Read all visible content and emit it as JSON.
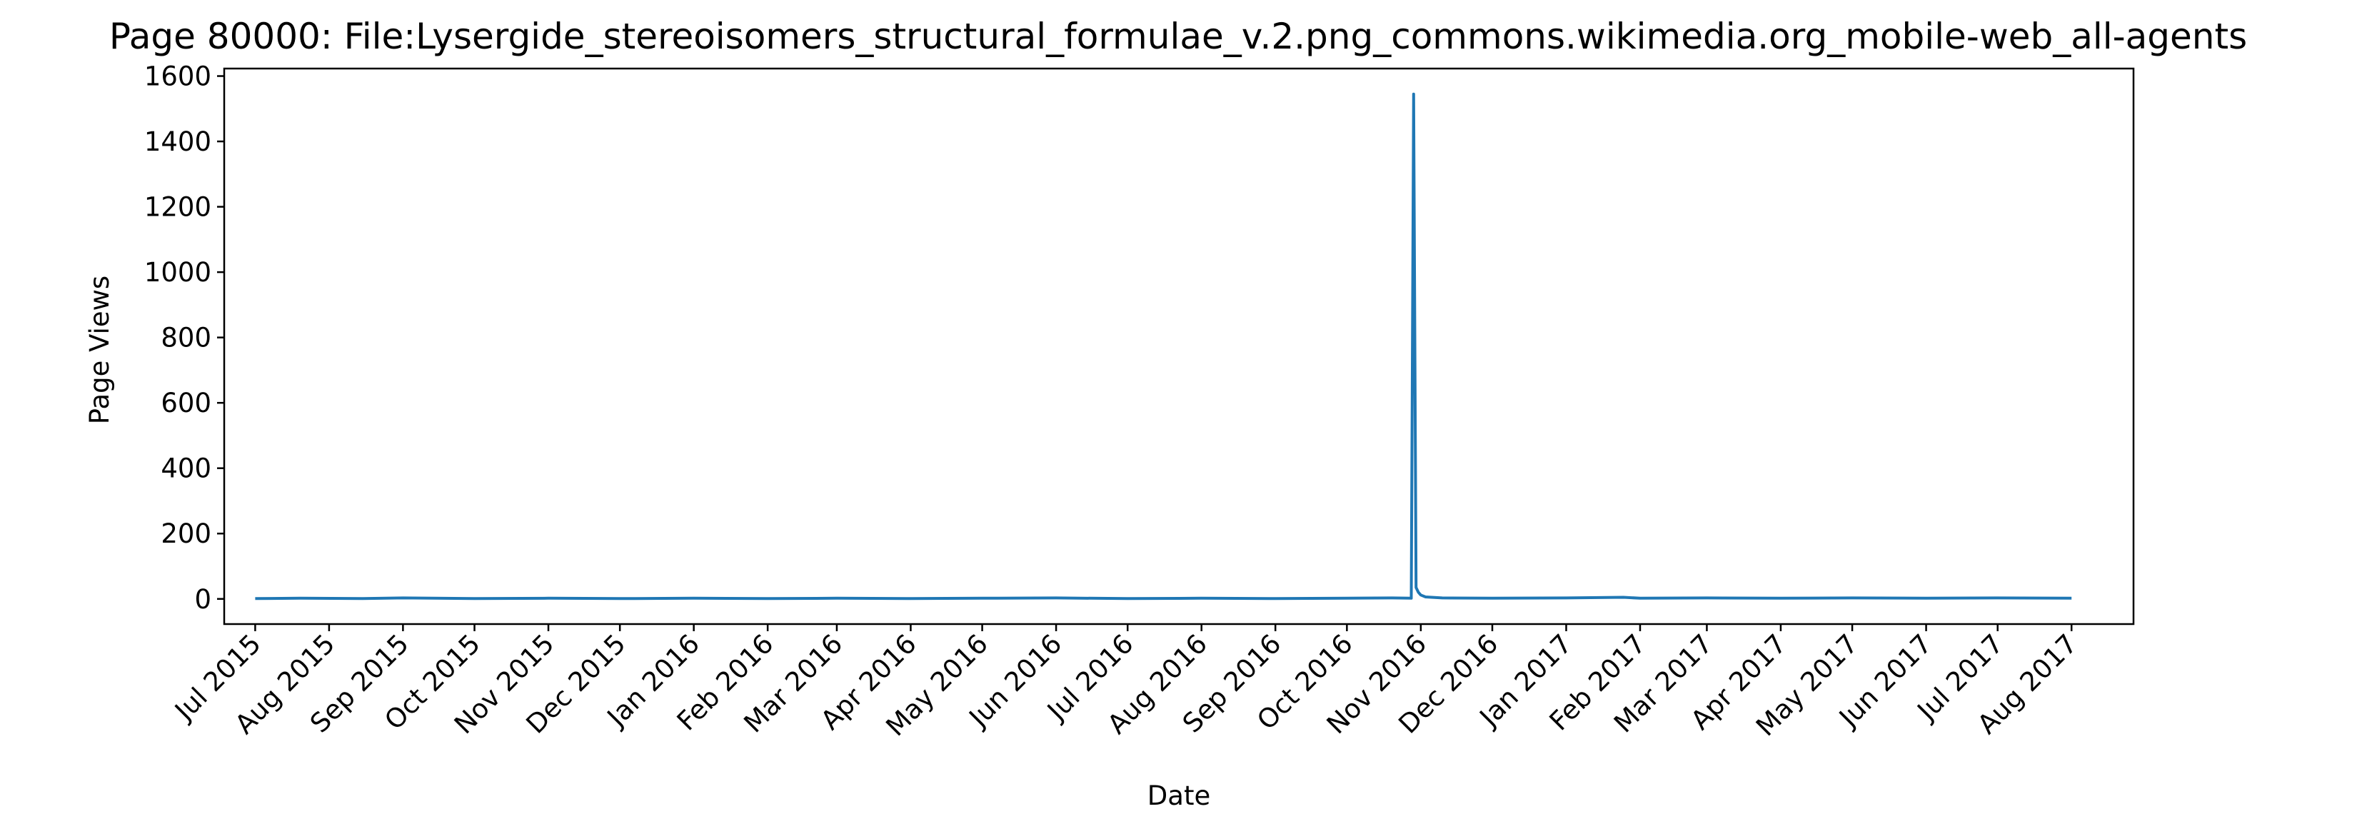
{
  "chart_data": {
    "type": "line",
    "title": "Page 80000: File:Lysergide_stereoisomers_structural_formulae_v.2.png_commons.wikimedia.org_mobile-web_all-agents",
    "xlabel": "Date",
    "ylabel": "Page Views",
    "xlim": [
      "2015-06-18",
      "2017-08-27"
    ],
    "ylim": [
      -77,
      1623
    ],
    "yticks": [
      0,
      200,
      400,
      600,
      800,
      1000,
      1200,
      1400,
      1600
    ],
    "xticks": [
      {
        "date": "2015-07-01",
        "label": "Jul 2015"
      },
      {
        "date": "2015-08-01",
        "label": "Aug 2015"
      },
      {
        "date": "2015-09-01",
        "label": "Sep 2015"
      },
      {
        "date": "2015-10-01",
        "label": "Oct 2015"
      },
      {
        "date": "2015-11-01",
        "label": "Nov 2015"
      },
      {
        "date": "2015-12-01",
        "label": "Dec 2015"
      },
      {
        "date": "2016-01-01",
        "label": "Jan 2016"
      },
      {
        "date": "2016-02-01",
        "label": "Feb 2016"
      },
      {
        "date": "2016-03-01",
        "label": "Mar 2016"
      },
      {
        "date": "2016-04-01",
        "label": "Apr 2016"
      },
      {
        "date": "2016-05-01",
        "label": "May 2016"
      },
      {
        "date": "2016-06-01",
        "label": "Jun 2016"
      },
      {
        "date": "2016-07-01",
        "label": "Jul 2016"
      },
      {
        "date": "2016-08-01",
        "label": "Aug 2016"
      },
      {
        "date": "2016-09-01",
        "label": "Sep 2016"
      },
      {
        "date": "2016-10-01",
        "label": "Oct 2016"
      },
      {
        "date": "2016-11-01",
        "label": "Nov 2016"
      },
      {
        "date": "2016-12-01",
        "label": "Dec 2016"
      },
      {
        "date": "2017-01-01",
        "label": "Jan 2017"
      },
      {
        "date": "2017-02-01",
        "label": "Feb 2017"
      },
      {
        "date": "2017-03-01",
        "label": "Mar 2017"
      },
      {
        "date": "2017-04-01",
        "label": "Apr 2017"
      },
      {
        "date": "2017-05-01",
        "label": "May 2017"
      },
      {
        "date": "2017-06-01",
        "label": "Jun 2017"
      },
      {
        "date": "2017-07-01",
        "label": "Jul 2017"
      },
      {
        "date": "2017-08-01",
        "label": "Aug 2017"
      }
    ],
    "grid": false,
    "line_color": "#1f77b4",
    "series": [
      {
        "points": [
          {
            "x": "2015-07-01",
            "y": 1
          },
          {
            "x": "2015-07-20",
            "y": 2
          },
          {
            "x": "2015-08-15",
            "y": 1
          },
          {
            "x": "2015-09-01",
            "y": 3
          },
          {
            "x": "2015-10-01",
            "y": 1
          },
          {
            "x": "2015-11-01",
            "y": 2
          },
          {
            "x": "2015-12-01",
            "y": 1
          },
          {
            "x": "2016-01-01",
            "y": 2
          },
          {
            "x": "2016-02-01",
            "y": 1
          },
          {
            "x": "2016-03-01",
            "y": 2
          },
          {
            "x": "2016-04-01",
            "y": 1
          },
          {
            "x": "2016-05-01",
            "y": 2
          },
          {
            "x": "2016-06-01",
            "y": 3
          },
          {
            "x": "2016-07-01",
            "y": 1
          },
          {
            "x": "2016-08-01",
            "y": 2
          },
          {
            "x": "2016-09-01",
            "y": 1
          },
          {
            "x": "2016-10-01",
            "y": 2
          },
          {
            "x": "2016-10-20",
            "y": 3
          },
          {
            "x": "2016-10-28",
            "y": 2
          },
          {
            "x": "2016-10-29",
            "y": 1545
          },
          {
            "x": "2016-10-30",
            "y": 35
          },
          {
            "x": "2016-10-31",
            "y": 20
          },
          {
            "x": "2016-11-01",
            "y": 12
          },
          {
            "x": "2016-11-03",
            "y": 6
          },
          {
            "x": "2016-11-10",
            "y": 3
          },
          {
            "x": "2016-12-01",
            "y": 2
          },
          {
            "x": "2017-01-01",
            "y": 3
          },
          {
            "x": "2017-01-25",
            "y": 5
          },
          {
            "x": "2017-02-01",
            "y": 2
          },
          {
            "x": "2017-03-01",
            "y": 3
          },
          {
            "x": "2017-04-01",
            "y": 2
          },
          {
            "x": "2017-05-01",
            "y": 3
          },
          {
            "x": "2017-06-01",
            "y": 2
          },
          {
            "x": "2017-07-01",
            "y": 3
          },
          {
            "x": "2017-08-01",
            "y": 2
          }
        ]
      }
    ]
  }
}
